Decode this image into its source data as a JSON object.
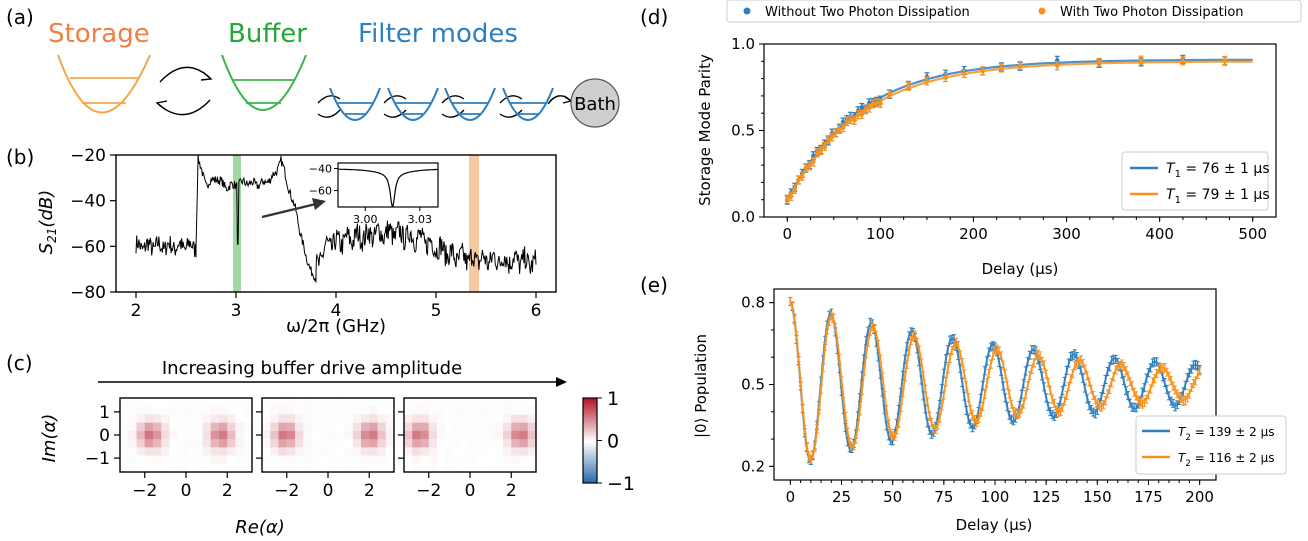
{
  "colors": {
    "storage": "#f07f41",
    "buffer": "#22a836",
    "filter": "#2e7fbf",
    "blue": "#2f7fbf",
    "orange": "#f7921e",
    "bath": "#cfcfcf",
    "s21_line": "#000000",
    "green_band": "#9fd8a0",
    "orange_band": "#f7c9a3"
  },
  "panel_a": {
    "label": "(a)",
    "storage": "Storage",
    "buffer": "Buffer",
    "filter": "Filter modes",
    "bath": "Bath"
  },
  "panel_c": {
    "label": "(c)",
    "arrow_text": "Increasing buffer drive amplitude",
    "ylabel": "Im(α)",
    "xlabel": "Re(α)",
    "x_ticks": [
      "−2",
      "0",
      "2"
    ],
    "y_ticks": [
      "1",
      "0",
      "−1"
    ],
    "colorbar_ticks": [
      "1",
      "0",
      "−1"
    ]
  },
  "chart_data": [
    {
      "id": "b",
      "panel_label": "(b)",
      "type": "line",
      "xlabel": "ω/2π (GHz)",
      "ylabel": "S21(dB)",
      "xlim": [
        1.8,
        6.2
      ],
      "ylim": [
        -80,
        -20
      ],
      "x_ticks": [
        "2",
        "3",
        "4",
        "5",
        "6"
      ],
      "y_ticks": [
        "−20",
        "−40",
        "−60",
        "−80"
      ],
      "segments": [
        {
          "x": [
            2.0,
            2.6
          ],
          "y": [
            -60,
            -60
          ],
          "noise": 4
        },
        {
          "x": [
            2.6,
            2.62,
            2.7,
            2.8,
            2.9,
            3.0,
            3.1,
            3.2,
            3.3,
            3.4,
            3.45,
            3.5,
            3.6,
            3.7,
            3.8
          ],
          "y": [
            -60,
            -22,
            -33,
            -30,
            -34,
            -33,
            -32,
            -33,
            -32,
            -28,
            -22,
            -30,
            -45,
            -65,
            -75
          ],
          "noise": 2
        },
        {
          "x": [
            3.8,
            3.9,
            4.2,
            4.5,
            4.8,
            5.0,
            5.2,
            5.5,
            5.8,
            6.0
          ],
          "y": [
            -70,
            -60,
            -56,
            -54,
            -56,
            -60,
            -65,
            -66,
            -66,
            -68
          ],
          "noise": 5
        }
      ],
      "dip": {
        "x": 3.02,
        "y": -59
      },
      "highlight_green": [
        2.97,
        3.05
      ],
      "highlight_orange": [
        5.33,
        5.43
      ],
      "inset": {
        "x_ticks": [
          "3.00",
          "3.03"
        ],
        "y_ticks": [
          "−40",
          "−60"
        ],
        "xlim": [
          2.985,
          3.04
        ],
        "ylim": [
          -75,
          -35
        ],
        "center": 3.015,
        "baseline": -40
      }
    },
    {
      "id": "d",
      "panel_label": "(d)",
      "type": "scatter",
      "xlabel": "Delay (μs)",
      "ylabel": "Storage Mode Parity",
      "xlim": [
        -25,
        525
      ],
      "ylim": [
        0.0,
        1.0
      ],
      "x_ticks": [
        "0",
        "100",
        "200",
        "300",
        "400",
        "500"
      ],
      "y_ticks": [
        "0.0",
        "0.5",
        "1.0"
      ],
      "legend_top": [
        "Without Two Photon Dissipation",
        "With Two Photon Dissipation"
      ],
      "series": [
        {
          "name": "T1 = 76 ± 1 μs",
          "color": "blue",
          "a": 0.82,
          "b": 0.09,
          "tau": 76
        },
        {
          "name": "T1 = 79 ± 1 μs",
          "color": "orange",
          "a": 0.81,
          "b": 0.09,
          "tau": 79
        }
      ],
      "legend_entries": [
        {
          "sym": "T",
          "sub": "1",
          "rest": " = 76 ± 1 μs"
        },
        {
          "sym": "T",
          "sub": "1",
          "rest": " = 79 ± 1 μs"
        }
      ]
    },
    {
      "id": "e",
      "panel_label": "(e)",
      "type": "scatter",
      "xlabel": "Delay (μs)",
      "ylabel": "|0⟩ Population",
      "xlim": [
        -8,
        208
      ],
      "ylim": [
        0.15,
        0.85
      ],
      "x_ticks": [
        "0",
        "25",
        "50",
        "75",
        "100",
        "125",
        "150",
        "175",
        "200"
      ],
      "y_ticks": [
        "0.8",
        "0.5",
        "0.2"
      ],
      "series": [
        {
          "name": "T2 = 139 ± 2 μs",
          "color": "blue",
          "T2": 139,
          "period": 19.8
        },
        {
          "name": "T2 = 116 ± 2 μs",
          "color": "orange",
          "T2": 116,
          "period": 20.2
        }
      ],
      "legend_entries": [
        {
          "sym": "T",
          "sub": "2",
          "rest": " = 139 ± 2 μs"
        },
        {
          "sym": "T",
          "sub": "2",
          "rest": " = 116 ± 2 μs"
        }
      ]
    }
  ]
}
